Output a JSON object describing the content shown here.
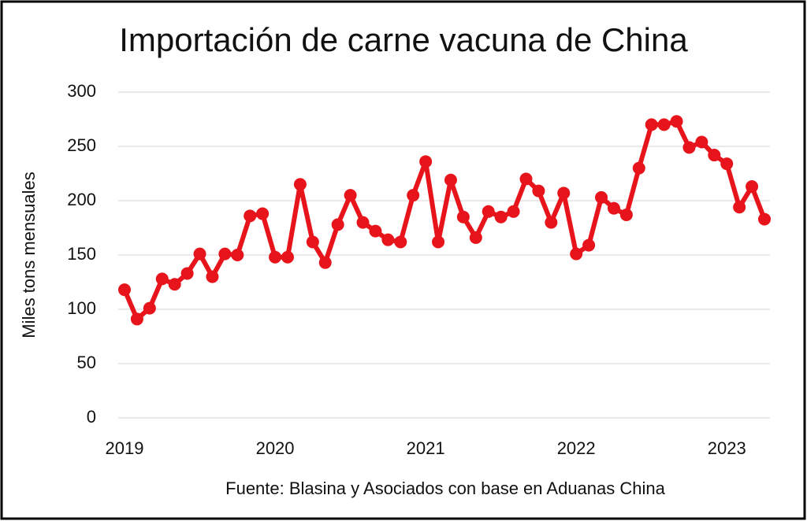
{
  "chart_data": {
    "type": "line",
    "title": "Importación de carne vacuna de China",
    "y_label": "Miles tons mensuales",
    "source": "Fuente: Blasina y Asociados con base en Aduanas China",
    "categories": [
      "2019",
      null,
      null,
      null,
      null,
      null,
      null,
      null,
      null,
      null,
      null,
      null,
      "2020",
      null,
      null,
      null,
      null,
      null,
      null,
      null,
      null,
      null,
      null,
      null,
      "2021",
      null,
      null,
      null,
      null,
      null,
      null,
      null,
      null,
      null,
      null,
      null,
      "2022",
      null,
      null,
      null,
      null,
      null,
      null,
      null,
      null,
      null,
      null,
      null,
      "2023",
      null,
      null,
      null
    ],
    "series": [
      {
        "color": "#e8141b",
        "values": [
          118,
          91,
          101,
          128,
          123,
          133,
          151,
          130,
          151,
          150,
          186,
          188,
          148,
          148,
          215,
          162,
          143,
          178,
          205,
          180,
          172,
          164,
          162,
          205,
          236,
          162,
          219,
          185,
          166,
          190,
          185,
          190,
          220,
          209,
          180,
          207,
          151,
          159,
          203,
          193,
          187,
          230,
          270,
          270,
          273,
          249,
          254,
          242,
          234,
          194,
          213,
          183
        ]
      }
    ],
    "ylim": [
      0,
      300
    ],
    "yticks": [
      0,
      50,
      100,
      150,
      200,
      250,
      300
    ],
    "grid": true
  }
}
